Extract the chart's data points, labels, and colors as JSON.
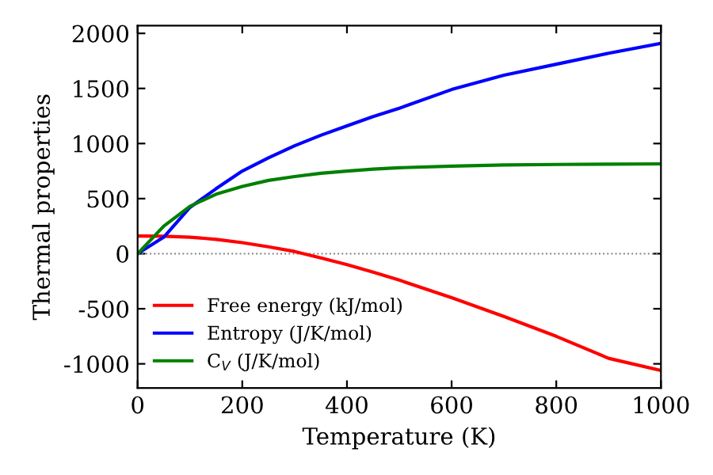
{
  "chart_data": {
    "type": "line",
    "xlabel": "Temperature (K)",
    "ylabel": "Thermal properties",
    "xlim": [
      0,
      1000
    ],
    "ylim": [
      -1220,
      2070
    ],
    "xticks": [
      0,
      200,
      400,
      600,
      800,
      1000
    ],
    "yticks": [
      -1000,
      -500,
      0,
      500,
      1000,
      1500,
      2000
    ],
    "x": [
      0,
      50,
      100,
      150,
      200,
      250,
      300,
      350,
      400,
      450,
      500,
      600,
      700,
      800,
      900,
      1000
    ],
    "series": [
      {
        "name": "Free energy (kJ/mol)",
        "color": "#ff0000",
        "values": [
          160,
          158,
          150,
          130,
          100,
          62,
          20,
          -38,
          -100,
          -168,
          -240,
          -400,
          -570,
          -750,
          -950,
          -1060
        ]
      },
      {
        "name": "Entropy (J/K/mol)",
        "color": "#0000ff",
        "values": [
          0,
          150,
          420,
          590,
          750,
          870,
          980,
          1075,
          1160,
          1245,
          1320,
          1490,
          1620,
          1720,
          1820,
          1910
        ]
      },
      {
        "name": "C$_{V}$ (J/K/mol)",
        "color": "#008000",
        "values": [
          0,
          250,
          430,
          540,
          610,
          665,
          700,
          730,
          750,
          768,
          780,
          795,
          805,
          810,
          813,
          815
        ]
      }
    ],
    "ref_lines": [
      {
        "axis": "y",
        "value": 0,
        "color": "#808080",
        "line_style": "dotted"
      }
    ],
    "legend": "bottom left",
    "grid": false
  }
}
